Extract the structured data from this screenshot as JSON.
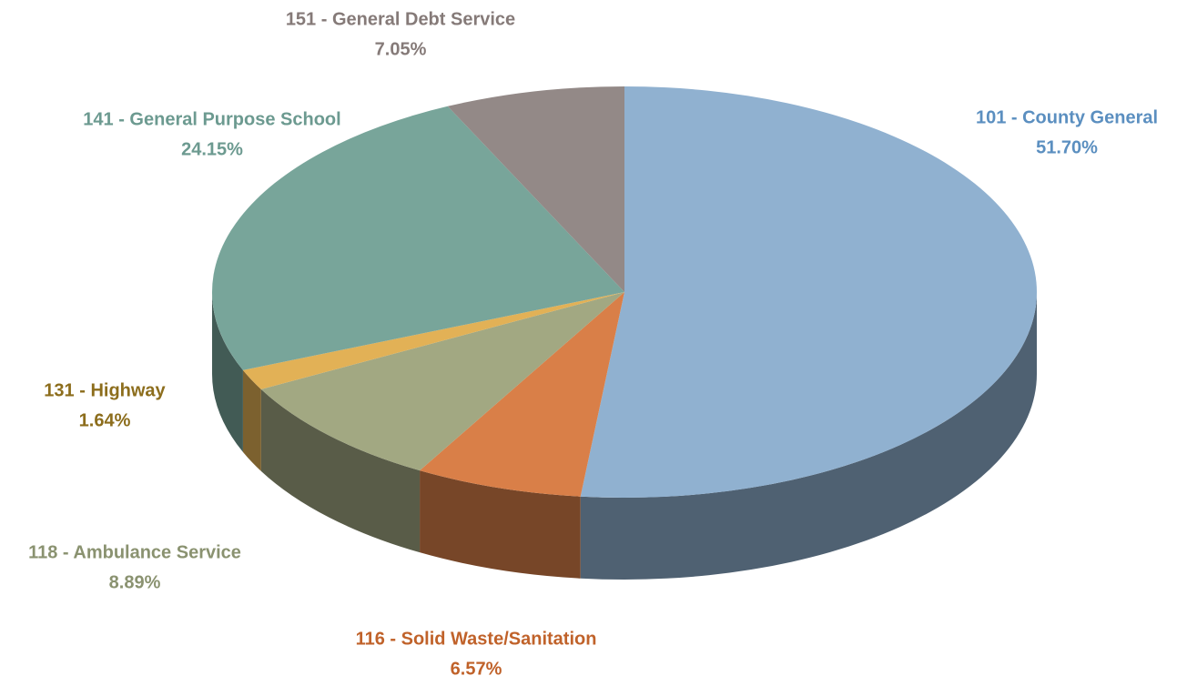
{
  "chart_data": {
    "type": "pie3d",
    "categories": [
      "101 - County General",
      "116 - Solid Waste/Sanitation",
      "118 - Ambulance Service",
      "131 - Highway",
      "141 - General Purpose School",
      "151 - General Debt Service"
    ],
    "values": [
      51.7,
      6.57,
      8.89,
      1.64,
      24.15,
      7.05
    ],
    "value_labels": [
      "51.70%",
      "6.57%",
      "8.89%",
      "1.64%",
      "24.15%",
      "7.05%"
    ],
    "colors": [
      "#90b1d0",
      "#d97f48",
      "#a2a882",
      "#e2b156",
      "#78a59a",
      "#938987"
    ],
    "label_colors": [
      "#5b8fc0",
      "#c0622a",
      "#8a9270",
      "#8c6d1c",
      "#6c9a90",
      "#857a78"
    ]
  }
}
